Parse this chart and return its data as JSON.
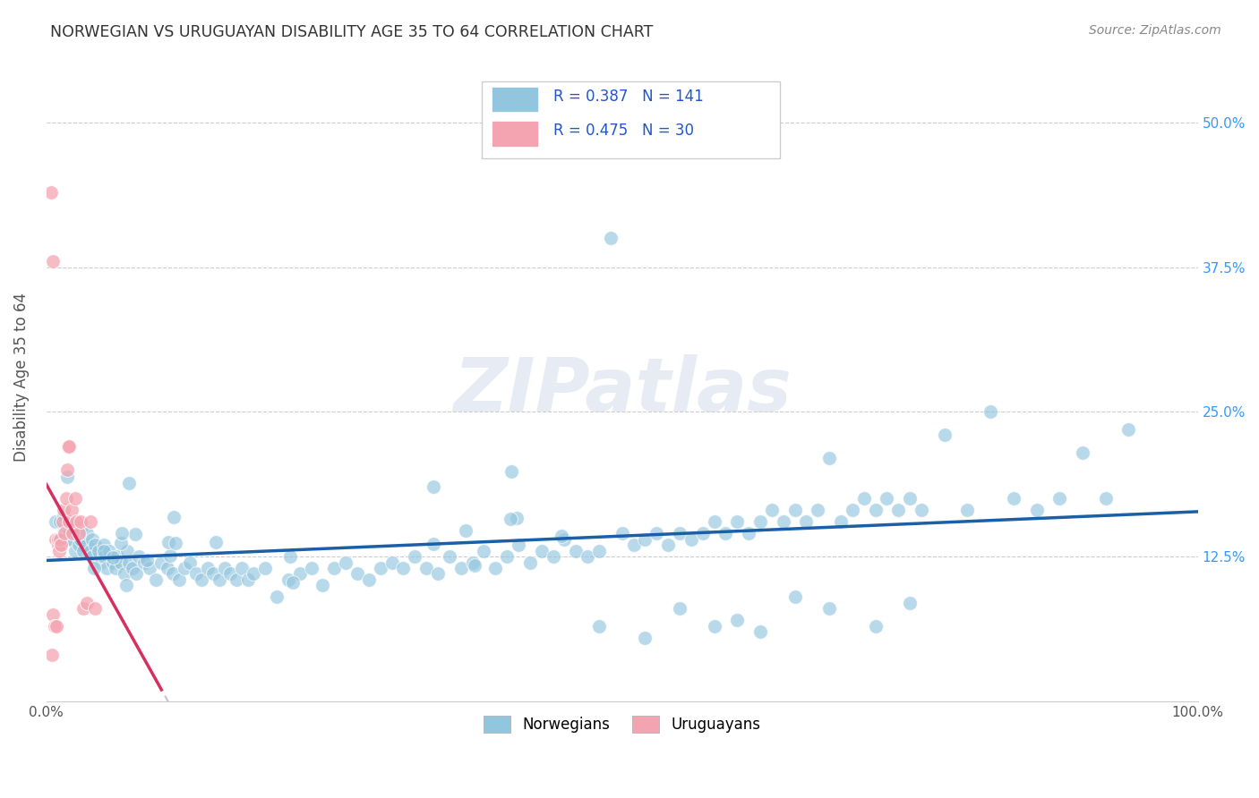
{
  "title": "NORWEGIAN VS URUGUAYAN DISABILITY AGE 35 TO 64 CORRELATION CHART",
  "source": "Source: ZipAtlas.com",
  "ylabel_label": "Disability Age 35 to 64",
  "blue_color": "#92c5de",
  "pink_color": "#f4a4b0",
  "blue_line_color": "#1a5fa8",
  "pink_line_color": "#d63060",
  "pink_dash_color": "#ccbbcc",
  "watermark_text": "ZIPatlas",
  "R_norwegian": 0.387,
  "N_norwegian": 141,
  "R_uruguayan": 0.475,
  "N_uruguayan": 30,
  "xlim": [
    0.0,
    1.0
  ],
  "ylim": [
    0.0,
    0.56
  ],
  "yticks": [
    0.125,
    0.25,
    0.375,
    0.5
  ],
  "ytick_labels": [
    "12.5%",
    "25.0%",
    "37.5%",
    "50.0%"
  ],
  "xticks": [
    0.0,
    0.25,
    0.5,
    0.75,
    1.0
  ],
  "xtick_labels": [
    "0.0%",
    "",
    "",
    "",
    "100.0%"
  ],
  "background_color": "#ffffff",
  "grid_color": "#cccccc",
  "title_color": "#333333",
  "source_color": "#888888",
  "legend_blue_label": "R = 0.387   N = 141",
  "legend_pink_label": "R = 0.475   N = 30",
  "bottom_legend_labels": [
    "Norwegians",
    "Uruguayans"
  ],
  "nor_x": [
    0.008,
    0.01,
    0.012,
    0.015,
    0.015,
    0.018,
    0.018,
    0.02,
    0.02,
    0.022,
    0.022,
    0.025,
    0.025,
    0.028,
    0.03,
    0.03,
    0.032,
    0.035,
    0.035,
    0.038,
    0.04,
    0.04,
    0.042,
    0.045,
    0.048,
    0.05,
    0.05,
    0.052,
    0.055,
    0.058,
    0.06,
    0.062,
    0.065,
    0.068,
    0.07,
    0.072,
    0.075,
    0.078,
    0.08,
    0.085,
    0.09,
    0.095,
    0.1,
    0.105,
    0.11,
    0.115,
    0.12,
    0.125,
    0.13,
    0.135,
    0.14,
    0.145,
    0.15,
    0.155,
    0.16,
    0.165,
    0.17,
    0.175,
    0.18,
    0.19,
    0.2,
    0.21,
    0.22,
    0.23,
    0.24,
    0.25,
    0.26,
    0.27,
    0.28,
    0.29,
    0.3,
    0.31,
    0.32,
    0.33,
    0.34,
    0.35,
    0.36,
    0.37,
    0.38,
    0.39,
    0.4,
    0.41,
    0.42,
    0.43,
    0.44,
    0.45,
    0.46,
    0.47,
    0.48,
    0.49,
    0.5,
    0.51,
    0.52,
    0.53,
    0.54,
    0.55,
    0.56,
    0.57,
    0.58,
    0.59,
    0.6,
    0.61,
    0.62,
    0.63,
    0.64,
    0.65,
    0.66,
    0.67,
    0.68,
    0.69,
    0.7,
    0.71,
    0.72,
    0.73,
    0.74,
    0.75,
    0.76,
    0.78,
    0.8,
    0.82,
    0.84,
    0.86,
    0.88,
    0.9,
    0.92,
    0.94
  ],
  "nor_y": [
    0.155,
    0.14,
    0.155,
    0.145,
    0.16,
    0.14,
    0.15,
    0.145,
    0.155,
    0.14,
    0.15,
    0.13,
    0.145,
    0.135,
    0.14,
    0.15,
    0.13,
    0.135,
    0.145,
    0.13,
    0.14,
    0.125,
    0.135,
    0.13,
    0.12,
    0.135,
    0.125,
    0.115,
    0.13,
    0.12,
    0.115,
    0.125,
    0.12,
    0.11,
    0.13,
    0.12,
    0.115,
    0.11,
    0.125,
    0.12,
    0.115,
    0.105,
    0.12,
    0.115,
    0.11,
    0.105,
    0.115,
    0.12,
    0.11,
    0.105,
    0.115,
    0.11,
    0.105,
    0.115,
    0.11,
    0.105,
    0.115,
    0.105,
    0.11,
    0.115,
    0.09,
    0.105,
    0.11,
    0.115,
    0.1,
    0.115,
    0.12,
    0.11,
    0.105,
    0.115,
    0.12,
    0.115,
    0.125,
    0.115,
    0.11,
    0.125,
    0.115,
    0.12,
    0.13,
    0.115,
    0.125,
    0.135,
    0.12,
    0.13,
    0.125,
    0.14,
    0.13,
    0.125,
    0.13,
    0.4,
    0.145,
    0.135,
    0.14,
    0.145,
    0.135,
    0.145,
    0.14,
    0.145,
    0.155,
    0.145,
    0.155,
    0.145,
    0.155,
    0.165,
    0.155,
    0.165,
    0.155,
    0.165,
    0.21,
    0.155,
    0.165,
    0.175,
    0.165,
    0.175,
    0.165,
    0.175,
    0.165,
    0.23,
    0.165,
    0.25,
    0.175,
    0.165,
    0.175,
    0.215,
    0.175,
    0.235
  ],
  "uru_x": [
    0.004,
    0.005,
    0.006,
    0.006,
    0.007,
    0.008,
    0.009,
    0.01,
    0.01,
    0.011,
    0.012,
    0.013,
    0.014,
    0.015,
    0.016,
    0.017,
    0.018,
    0.019,
    0.02,
    0.02,
    0.022,
    0.023,
    0.025,
    0.026,
    0.028,
    0.03,
    0.032,
    0.035,
    0.038,
    0.042
  ],
  "uru_y": [
    0.44,
    0.04,
    0.38,
    0.075,
    0.065,
    0.14,
    0.065,
    0.135,
    0.14,
    0.13,
    0.14,
    0.135,
    0.155,
    0.165,
    0.145,
    0.175,
    0.2,
    0.22,
    0.22,
    0.155,
    0.165,
    0.145,
    0.175,
    0.155,
    0.145,
    0.155,
    0.08,
    0.085,
    0.155,
    0.08
  ]
}
